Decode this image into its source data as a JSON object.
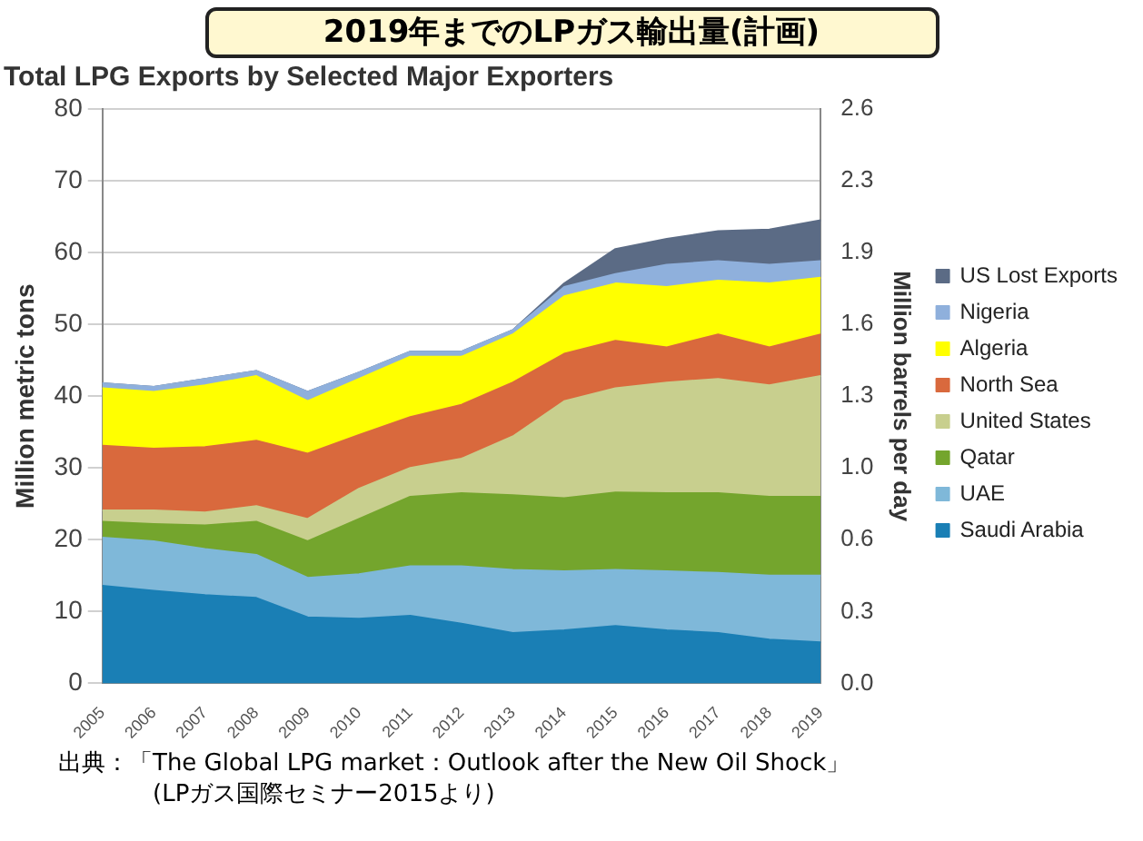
{
  "chart_data": {
    "type": "area",
    "title": "2019年までのLPガス輸出量(計画)",
    "subtitle": "Total LPG Exports by Selected Major Exporters",
    "ylabel": "Million metric tons",
    "y2label": "Million barrels per day",
    "categories": [
      "2005",
      "2006",
      "2007",
      "2008",
      "2009",
      "2010",
      "2011",
      "2012",
      "2013",
      "2014",
      "2015",
      "2016",
      "2017",
      "2018",
      "2019"
    ],
    "stacked": true,
    "grid": "y",
    "legend": "right",
    "marker": "none",
    "ylim": [
      0,
      80
    ],
    "yticks": [
      0,
      10,
      20,
      30,
      40,
      50,
      60,
      70,
      80
    ],
    "y2lim": [
      0,
      2.6
    ],
    "y2ticks": [
      {
        "value": 0,
        "label": "0.0"
      },
      {
        "value": 0.325,
        "label": "0.3"
      },
      {
        "value": 0.65,
        "label": "0.6"
      },
      {
        "value": 0.975,
        "label": "1.0"
      },
      {
        "value": 1.3,
        "label": "1.3"
      },
      {
        "value": 1.625,
        "label": "1.6"
      },
      {
        "value": 1.95,
        "label": "1.9"
      },
      {
        "value": 2.275,
        "label": "2.3"
      },
      {
        "value": 2.6,
        "label": "2.6"
      }
    ],
    "series": [
      {
        "name": "Saudi Arabia",
        "color": "#1a7fb5",
        "values": [
          13.6,
          12.9,
          12.3,
          11.9,
          9.2,
          9.0,
          9.4,
          8.3,
          7.0,
          7.4,
          8.0,
          7.4,
          7.0,
          6.1,
          5.7
        ]
      },
      {
        "name": "UAE",
        "color": "#7fb8d9",
        "values": [
          6.7,
          6.9,
          6.4,
          6.0,
          5.5,
          6.2,
          6.9,
          8.0,
          8.8,
          8.2,
          7.8,
          8.2,
          8.4,
          8.9,
          9.3
        ]
      },
      {
        "name": "Qatar",
        "color": "#74a52d",
        "values": [
          2.2,
          2.4,
          3.3,
          4.6,
          5.1,
          7.7,
          9.7,
          10.2,
          10.4,
          10.2,
          10.8,
          10.9,
          11.1,
          11.0,
          11.0
        ]
      },
      {
        "name": "United States",
        "color": "#c8cf8e",
        "values": [
          1.6,
          1.9,
          1.8,
          2.2,
          3.1,
          4.2,
          4.0,
          4.8,
          8.2,
          13.5,
          14.5,
          15.4,
          15.9,
          15.5,
          16.8
        ]
      },
      {
        "name": "North Sea",
        "color": "#d9693d",
        "values": [
          9.0,
          8.6,
          9.1,
          9.1,
          9.1,
          7.5,
          7.1,
          7.5,
          7.5,
          6.6,
          6.6,
          4.9,
          6.2,
          5.3,
          5.8
        ]
      },
      {
        "name": "Algeria",
        "color": "#ffff00",
        "values": [
          8.0,
          7.9,
          8.6,
          9.0,
          7.3,
          7.8,
          8.4,
          6.7,
          6.7,
          8.0,
          8.0,
          8.4,
          7.5,
          8.9,
          7.9
        ]
      },
      {
        "name": "Nigeria",
        "color": "#8fb0dc",
        "values": [
          0.7,
          0.7,
          0.9,
          0.7,
          1.3,
          0.9,
          0.7,
          0.7,
          0.6,
          1.3,
          1.3,
          3.1,
          2.7,
          2.6,
          2.3
        ]
      },
      {
        "name": "US Lost Exports",
        "color": "#5b6b85",
        "values": [
          0,
          0,
          0,
          0,
          0,
          0,
          0,
          0,
          0,
          0.5,
          3.5,
          3.6,
          4.2,
          4.9,
          5.7
        ]
      }
    ],
    "annotations": [
      "出典：「The Global LPG market：Outlook after the New Oil Shock」",
      "(LPガス国際セミナー2015より)"
    ]
  }
}
